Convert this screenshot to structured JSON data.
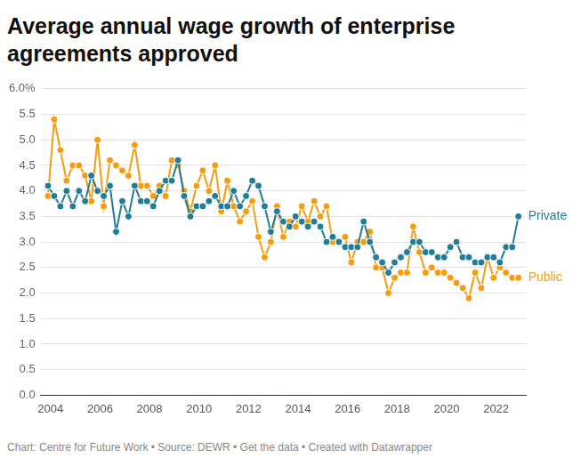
{
  "chart_data": {
    "type": "line",
    "title": "Average annual wage growth of enterprise agreements approved",
    "caption": "Chart: Centre for Future Work • Source: DEWR • Get the data • Created with Datawrapper",
    "x": [
      2003.9,
      2004.15,
      2004.4,
      2004.65,
      2004.9,
      2005.15,
      2005.4,
      2005.65,
      2005.9,
      2006.15,
      2006.4,
      2006.65,
      2006.9,
      2007.15,
      2007.4,
      2007.65,
      2007.9,
      2008.15,
      2008.4,
      2008.65,
      2008.9,
      2009.15,
      2009.4,
      2009.65,
      2009.9,
      2010.15,
      2010.4,
      2010.65,
      2010.9,
      2011.15,
      2011.4,
      2011.65,
      2011.9,
      2012.15,
      2012.4,
      2012.65,
      2012.9,
      2013.15,
      2013.4,
      2013.65,
      2013.9,
      2014.15,
      2014.4,
      2014.65,
      2014.9,
      2015.15,
      2015.4,
      2015.65,
      2015.9,
      2016.15,
      2016.4,
      2016.65,
      2016.9,
      2017.15,
      2017.4,
      2017.65,
      2017.9,
      2018.15,
      2018.4,
      2018.65,
      2018.9,
      2019.15,
      2019.4,
      2019.65,
      2019.9,
      2020.15,
      2020.4,
      2020.65,
      2020.9,
      2021.15,
      2021.4,
      2021.65,
      2021.9,
      2022.15,
      2022.4,
      2022.65,
      2022.9
    ],
    "series": [
      {
        "name": "Private",
        "color": "#217d96",
        "marker": "circle",
        "values": [
          4.1,
          3.9,
          3.7,
          4.0,
          3.7,
          4.0,
          3.8,
          4.3,
          4.0,
          3.9,
          4.1,
          3.2,
          3.8,
          3.5,
          4.1,
          3.8,
          3.8,
          3.7,
          4.0,
          4.2,
          4.2,
          4.6,
          3.9,
          3.5,
          3.7,
          3.7,
          3.8,
          3.9,
          3.7,
          3.7,
          4.0,
          3.7,
          3.9,
          4.2,
          4.1,
          3.7,
          3.2,
          3.6,
          3.4,
          3.3,
          3.5,
          3.4,
          3.3,
          3.4,
          3.3,
          3.0,
          3.1,
          3.0,
          2.9,
          2.9,
          2.9,
          3.4,
          3.0,
          2.7,
          2.6,
          2.4,
          2.6,
          2.7,
          2.8,
          3.0,
          3.0,
          2.8,
          2.8,
          2.7,
          2.7,
          2.9,
          3.0,
          2.7,
          2.7,
          2.6,
          2.6,
          2.7,
          2.7,
          2.6,
          2.9,
          2.9,
          3.5
        ]
      },
      {
        "name": "Public",
        "color": "#f59d12",
        "marker": "circle",
        "values": [
          3.9,
          5.4,
          4.8,
          4.2,
          4.5,
          4.5,
          4.3,
          3.8,
          5.0,
          3.7,
          4.6,
          4.5,
          4.4,
          4.3,
          4.9,
          4.1,
          4.1,
          3.9,
          4.1,
          3.9,
          4.6,
          4.5,
          4.0,
          3.6,
          4.1,
          4.4,
          4.0,
          4.5,
          3.6,
          4.2,
          3.7,
          3.4,
          3.6,
          3.8,
          3.1,
          2.7,
          3.0,
          3.7,
          3.1,
          3.4,
          3.3,
          3.7,
          3.4,
          3.8,
          3.5,
          3.7,
          3.0,
          3.0,
          3.1,
          2.6,
          3.0,
          3.0,
          3.2,
          2.5,
          2.5,
          2.0,
          2.3,
          2.4,
          2.4,
          3.3,
          2.8,
          2.4,
          2.5,
          2.4,
          2.4,
          2.3,
          2.2,
          2.1,
          1.9,
          2.4,
          2.1,
          2.7,
          2.3,
          2.5,
          2.4,
          2.3,
          2.3
        ]
      }
    ],
    "xlim": [
      2003.6,
      2023.2
    ],
    "xticks": [
      2004,
      2006,
      2008,
      2010,
      2012,
      2014,
      2016,
      2018,
      2020,
      2022
    ],
    "ylim": [
      0,
      6
    ],
    "yticks": [
      {
        "value": 0,
        "label": "0.0"
      },
      {
        "value": 0.5,
        "label": "0.5"
      },
      {
        "value": 1,
        "label": "1.0"
      },
      {
        "value": 1.5,
        "label": "1.5"
      },
      {
        "value": 2,
        "label": "2.0"
      },
      {
        "value": 2.5,
        "label": "2.5"
      },
      {
        "value": 3,
        "label": "3.0"
      },
      {
        "value": 3.5,
        "label": "3.5"
      },
      {
        "value": 4,
        "label": "4.0"
      },
      {
        "value": 4.5,
        "label": "4.5"
      },
      {
        "value": 5,
        "label": "5.0"
      },
      {
        "value": 5.5,
        "label": "5.5"
      },
      {
        "value": 6,
        "label": "6.0%"
      }
    ],
    "grid": true
  }
}
